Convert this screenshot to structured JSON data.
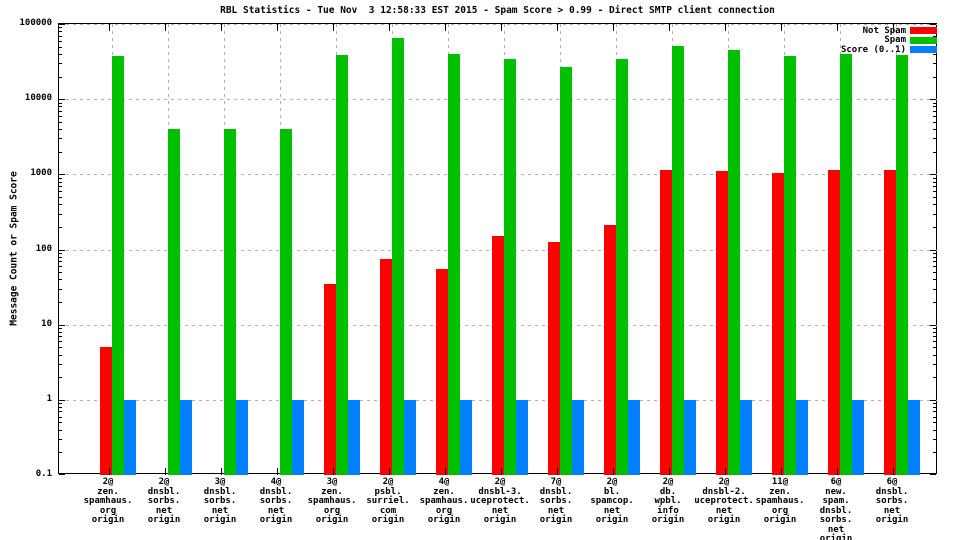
{
  "title": "RBL Statistics - Tue Nov  3 12:58:33 EST 2015 - Spam Score > 0.99 - Direct SMTP client connection",
  "y_axis": {
    "label": "Message Count or Spam Score",
    "tick_labels": [
      "100000",
      "10000",
      "1000",
      "100",
      "10",
      "1",
      "0.1"
    ]
  },
  "legend": {
    "position": "top-right",
    "items": [
      {
        "label": "Not Spam",
        "color": "#ff0000"
      },
      {
        "label": "Spam",
        "color": "#00c000"
      },
      {
        "label": "Score (0..1)",
        "color": "#0080ff"
      }
    ]
  },
  "chart_data": {
    "type": "bar",
    "y_scale": "log",
    "ylim": [
      0.1,
      100000
    ],
    "grid": true,
    "title": "RBL Statistics - Tue Nov  3 12:58:33 EST 2015 - Spam Score > 0.99 - Direct SMTP client connection",
    "ylabel": "Message Count or Spam Score",
    "xlabel": "",
    "y_ticks": [
      100000,
      10000,
      1000,
      100,
      10,
      1,
      0.1
    ],
    "categories": [
      [
        "2@",
        "zen.",
        "spamhaus.",
        "org",
        "origin"
      ],
      [
        "2@",
        "dnsbl.",
        "sorbs.",
        "net",
        "origin"
      ],
      [
        "3@",
        "dnsbl.",
        "sorbs.",
        "net",
        "origin"
      ],
      [
        "4@",
        "dnsbl.",
        "sorbs.",
        "net",
        "origin"
      ],
      [
        "3@",
        "zen.",
        "spamhaus.",
        "org",
        "origin"
      ],
      [
        "2@",
        "psbl.",
        "surriel.",
        "com",
        "origin"
      ],
      [
        "4@",
        "zen.",
        "spamhaus.",
        "org",
        "origin"
      ],
      [
        "2@",
        "dnsbl-3.",
        "uceprotect.",
        "net",
        "origin"
      ],
      [
        "7@",
        "dnsbl.",
        "sorbs.",
        "net",
        "origin"
      ],
      [
        "2@",
        "bl.",
        "spamcop.",
        "net",
        "origin"
      ],
      [
        "2@",
        "db.",
        "wpbl.",
        "info",
        "origin"
      ],
      [
        "2@",
        "dnsbl-2.",
        "uceprotect.",
        "net",
        "origin"
      ],
      [
        "11@",
        "zen.",
        "spamhaus.",
        "org",
        "origin"
      ],
      [
        "6@",
        "new.",
        "spam.",
        "dnsbl.",
        "sorbs.",
        "net",
        "origin"
      ],
      [
        "6@",
        "dnsbl.",
        "sorbs.",
        "net",
        "origin"
      ]
    ],
    "series": [
      {
        "name": "Not Spam",
        "color": "#ff0000",
        "values": [
          5,
          null,
          null,
          null,
          35,
          75,
          55,
          150,
          125,
          210,
          1150,
          1100,
          1050,
          1150,
          1150
        ]
      },
      {
        "name": "Spam",
        "color": "#00c000",
        "values": [
          38000,
          4000,
          4000,
          4000,
          39000,
          65000,
          40000,
          34000,
          27000,
          34000,
          51000,
          45000,
          37000,
          40000,
          39000
        ]
      },
      {
        "name": "Score (0..1)",
        "color": "#0080ff",
        "values": [
          1,
          1,
          1,
          1,
          1,
          1,
          1,
          1,
          1,
          1,
          1,
          1,
          1,
          1,
          1
        ]
      }
    ]
  }
}
